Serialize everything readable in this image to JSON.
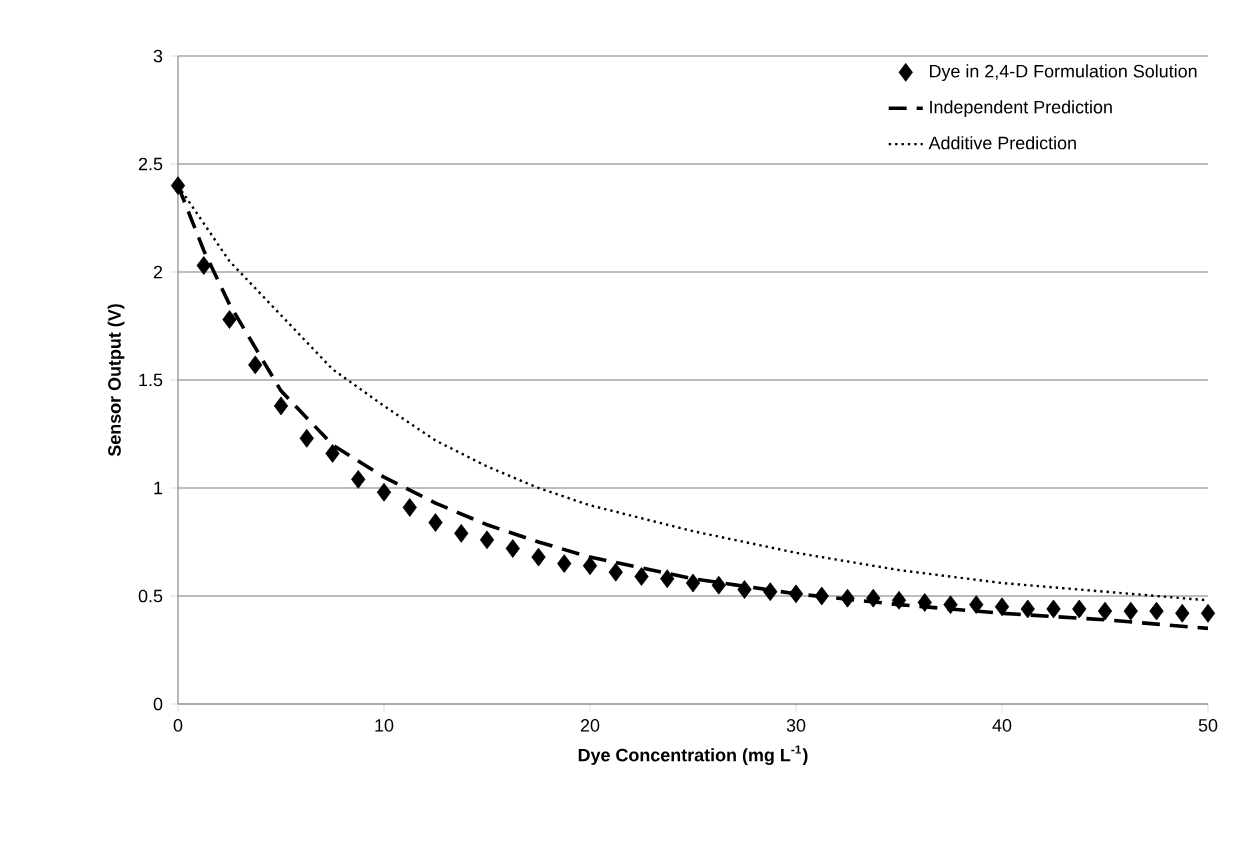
{
  "chart_data": {
    "type": "line",
    "xlabel": "Dye Concentration (mg L$^{-1}$)",
    "ylabel": "Sensor Output (V)",
    "xlim": [
      0,
      50
    ],
    "ylim": [
      0,
      3
    ],
    "xticks": [
      0,
      10,
      20,
      30,
      40,
      50
    ],
    "yticks": [
      0,
      0.5,
      1,
      1.5,
      2,
      2.5,
      3
    ],
    "grid": "y",
    "legend": "top right",
    "series": [
      {
        "name": "Dye in 2,4-D Formulation Solution",
        "type": "scatter",
        "marker": "diamond",
        "color": "#000000",
        "x": [
          0,
          1.25,
          2.5,
          3.75,
          5,
          6.25,
          7.5,
          8.75,
          10,
          11.25,
          12.5,
          13.75,
          15,
          16.25,
          17.5,
          18.75,
          20,
          21.25,
          22.5,
          23.75,
          25,
          26.25,
          27.5,
          28.75,
          30,
          31.25,
          32.5,
          33.75,
          35,
          36.25,
          37.5,
          38.75,
          40,
          41.25,
          42.5,
          43.75,
          45,
          46.25,
          47.5,
          48.75,
          50
        ],
        "values": [
          2.4,
          2.03,
          1.78,
          1.57,
          1.38,
          1.23,
          1.16,
          1.04,
          0.98,
          0.91,
          0.84,
          0.79,
          0.76,
          0.72,
          0.68,
          0.65,
          0.64,
          0.61,
          0.59,
          0.58,
          0.56,
          0.55,
          0.53,
          0.52,
          0.51,
          0.5,
          0.49,
          0.49,
          0.48,
          0.47,
          0.46,
          0.46,
          0.45,
          0.44,
          0.44,
          0.44,
          0.43,
          0.43,
          0.43,
          0.42,
          0.42
        ]
      },
      {
        "name": "Independent Prediction",
        "type": "line",
        "line_style": "dashed",
        "color": "#000000",
        "x": [
          0,
          1.25,
          2.5,
          3.75,
          5,
          7.5,
          10,
          12.5,
          15,
          17.5,
          20,
          25,
          30,
          35,
          40,
          45,
          50
        ],
        "values": [
          2.4,
          2.1,
          1.85,
          1.65,
          1.45,
          1.2,
          1.05,
          0.93,
          0.83,
          0.75,
          0.68,
          0.58,
          0.51,
          0.46,
          0.42,
          0.39,
          0.35
        ]
      },
      {
        "name": "Additive Prediction",
        "type": "line",
        "line_style": "dotted",
        "color": "#000000",
        "x": [
          0,
          2.5,
          5,
          7.5,
          10,
          12.5,
          15,
          17.5,
          20,
          25,
          30,
          35,
          40,
          45,
          50
        ],
        "values": [
          2.4,
          2.05,
          1.8,
          1.55,
          1.38,
          1.22,
          1.1,
          1.0,
          0.92,
          0.8,
          0.7,
          0.62,
          0.56,
          0.52,
          0.48
        ]
      }
    ]
  }
}
